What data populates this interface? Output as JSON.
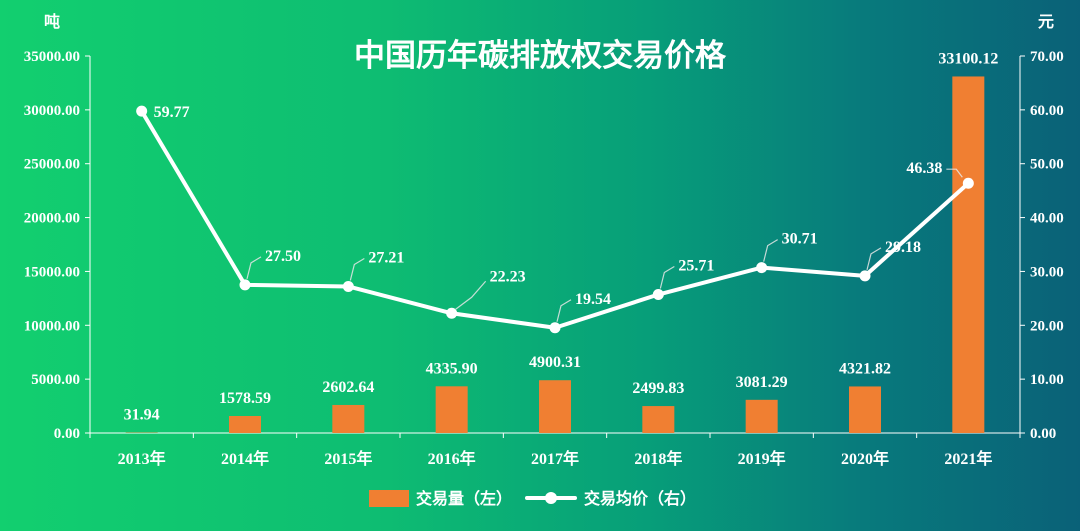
{
  "chart_data": {
    "type": "bar+line",
    "title": "中国历年碳排放权交易价格",
    "categories": [
      "2013年",
      "2014年",
      "2015年",
      "2016年",
      "2017年",
      "2018年",
      "2019年",
      "2020年",
      "2021年"
    ],
    "left_axis": {
      "unit": "吨",
      "ylim": [
        0,
        35000
      ],
      "ticks": [
        "0.00",
        "5000.00",
        "10000.00",
        "15000.00",
        "20000.00",
        "25000.00",
        "30000.00",
        "35000.00"
      ]
    },
    "right_axis": {
      "unit": "元",
      "ylim": [
        0,
        70
      ],
      "ticks": [
        "0.00",
        "10.00",
        "20.00",
        "30.00",
        "40.00",
        "50.00",
        "60.00",
        "70.00"
      ]
    },
    "series": [
      {
        "name": "交易量（左）",
        "type": "bar",
        "axis": "left",
        "color": "#f07f32",
        "values": [
          31.94,
          1578.59,
          2602.64,
          4335.9,
          4900.31,
          2499.83,
          3081.29,
          4321.82,
          33100.12
        ],
        "labels": [
          "31.94",
          "1578.59",
          "2602.64",
          "4335.90",
          "4900.31",
          "2499.83",
          "3081.29",
          "4321.82",
          "33100.12"
        ]
      },
      {
        "name": "交易均价（右）",
        "type": "line",
        "axis": "right",
        "color": "#ffffff",
        "values": [
          59.77,
          27.5,
          27.21,
          22.23,
          19.54,
          25.71,
          30.71,
          29.18,
          46.38
        ],
        "labels": [
          "59.77",
          "27.50",
          "27.21",
          "22.23",
          "19.54",
          "25.71",
          "30.71",
          "29.18",
          "46.38"
        ]
      }
    ],
    "grid": false,
    "legend_position": "bottom"
  }
}
